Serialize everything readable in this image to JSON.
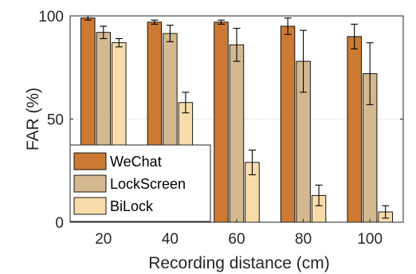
{
  "chart_data": {
    "type": "bar",
    "xlabel": "Recording distance (cm)",
    "ylabel": "FAR (%)",
    "categories": [
      "20",
      "40",
      "60",
      "80",
      "100"
    ],
    "ylim": [
      0,
      100
    ],
    "yticks": [
      0,
      50,
      100
    ],
    "grid": true,
    "legend_position": "bottom-left",
    "series": [
      {
        "name": "WeChat",
        "color": "#cc7a33",
        "values": [
          99,
          97,
          97,
          95,
          90
        ],
        "errors": [
          1,
          1,
          1,
          4,
          6
        ]
      },
      {
        "name": "LockScreen",
        "color": "#d4b88f",
        "values": [
          92,
          91.5,
          86,
          78,
          72
        ],
        "errors": [
          3,
          4,
          8,
          15,
          15
        ]
      },
      {
        "name": "BiLock",
        "color": "#f7dcaa",
        "values": [
          87,
          58,
          29,
          13,
          5
        ],
        "errors": [
          2,
          5,
          6,
          5,
          3
        ]
      }
    ]
  }
}
